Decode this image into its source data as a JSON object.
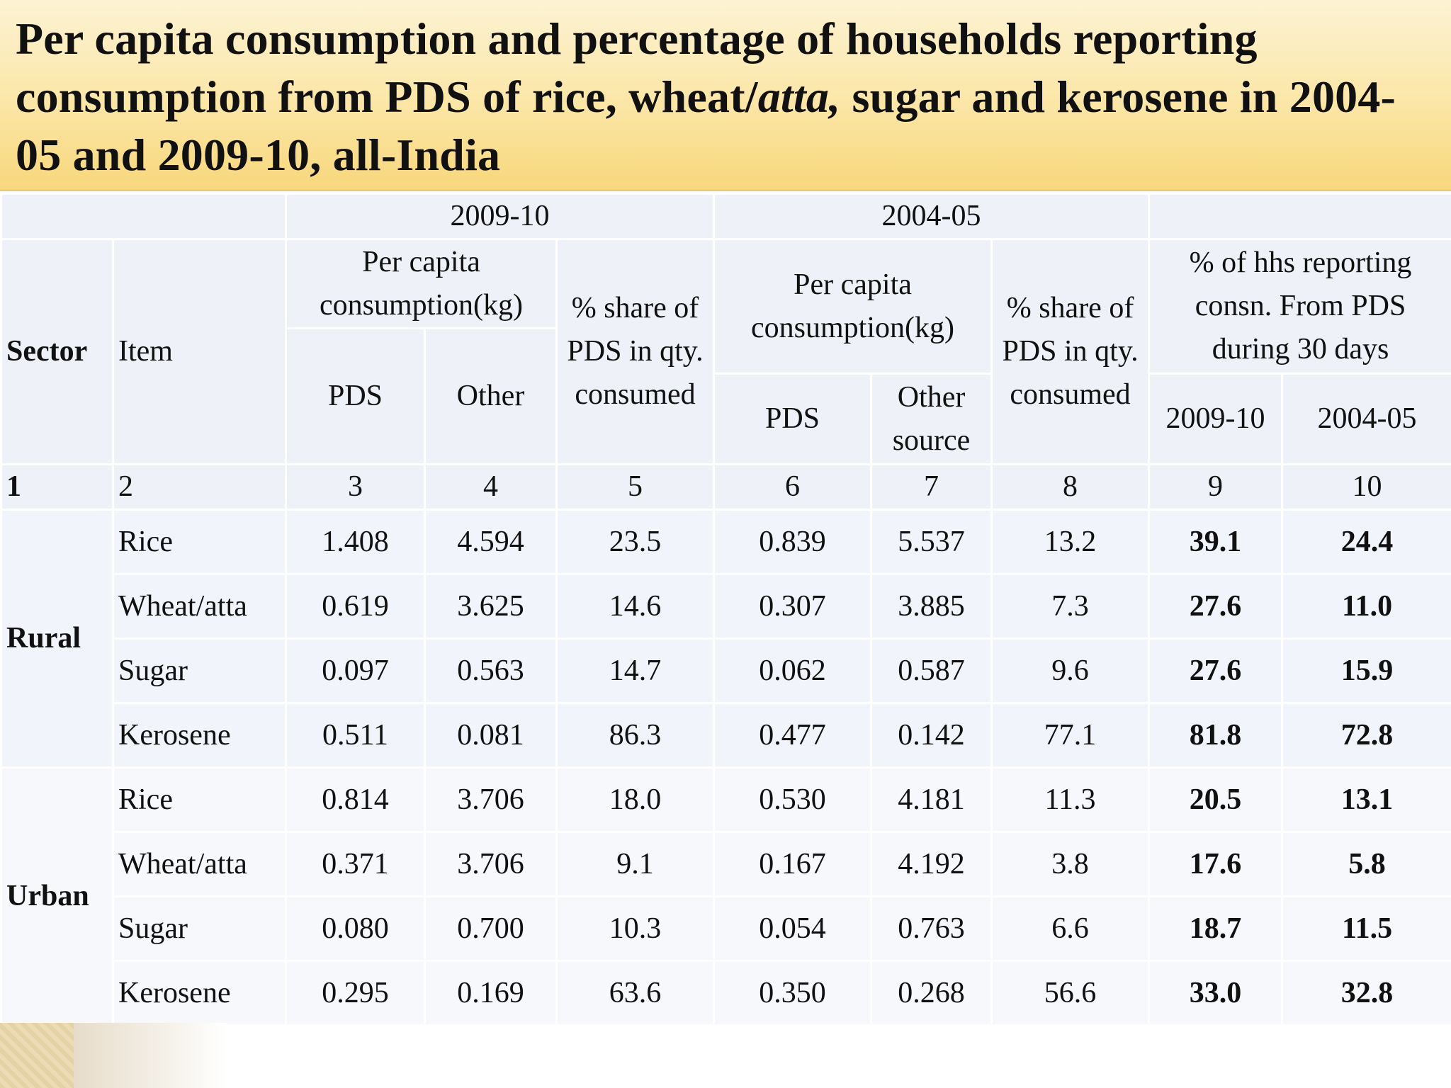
{
  "title": {
    "part1": "Per capita consumption and percentage of households reporting consumption from PDS of rice, wheat/",
    "italic": "atta,",
    "part2": " sugar and kerosene in 2004-05 and 2009-10, all-India"
  },
  "table": {
    "period_a": "2009-10",
    "period_b": "2004-05",
    "h_sector": "Sector",
    "h_item": "Item",
    "h_pc_a": "Per capita consumption(kg)",
    "h_share_a": "% share of PDS in qty. consumed",
    "h_pc_b": "Per capita consumption(kg)",
    "h_share_b": "% share of PDS in qty. consumed",
    "h_hhs": "% of hhs reporting consn. From PDS during 30 days",
    "h_pds_a": "PDS",
    "h_other_a": "Other",
    "h_pds_b": "PDS",
    "h_other_b": "Other source",
    "h_hhs_a": "2009-10",
    "h_hhs_b": "2004-05",
    "col_numbers": [
      "1",
      "2",
      "3",
      "4",
      "5",
      "6",
      "7",
      "8",
      "9",
      "10"
    ],
    "sectors": [
      {
        "name": "Rural",
        "rows": [
          [
            "Rice",
            "1.408",
            "4.594",
            "23.5",
            "0.839",
            "5.537",
            "13.2",
            "39.1",
            "24.4"
          ],
          [
            "Wheat/atta",
            "0.619",
            "3.625",
            "14.6",
            "0.307",
            "3.885",
            "7.3",
            "27.6",
            "11.0"
          ],
          [
            "Sugar",
            "0.097",
            "0.563",
            "14.7",
            "0.062",
            "0.587",
            "9.6",
            "27.6",
            "15.9"
          ],
          [
            "Kerosene",
            "0.511",
            "0.081",
            "86.3",
            "0.477",
            "0.142",
            "77.1",
            "81.8",
            "72.8"
          ]
        ]
      },
      {
        "name": "Urban",
        "rows": [
          [
            "Rice",
            "0.814",
            "3.706",
            "18.0",
            "0.530",
            "4.181",
            "11.3",
            "20.5",
            "13.1"
          ],
          [
            "Wheat/atta",
            "0.371",
            "3.706",
            "9.1",
            "0.167",
            "4.192",
            "3.8",
            "17.6",
            "5.8"
          ],
          [
            "Sugar",
            "0.080",
            "0.700",
            "10.3",
            "0.054",
            "0.763",
            "6.6",
            "18.7",
            "11.5"
          ],
          [
            "Kerosene",
            "0.295",
            "0.169",
            "63.6",
            "0.350",
            "0.268",
            "56.6",
            "33.0",
            "32.8"
          ]
        ]
      }
    ]
  }
}
